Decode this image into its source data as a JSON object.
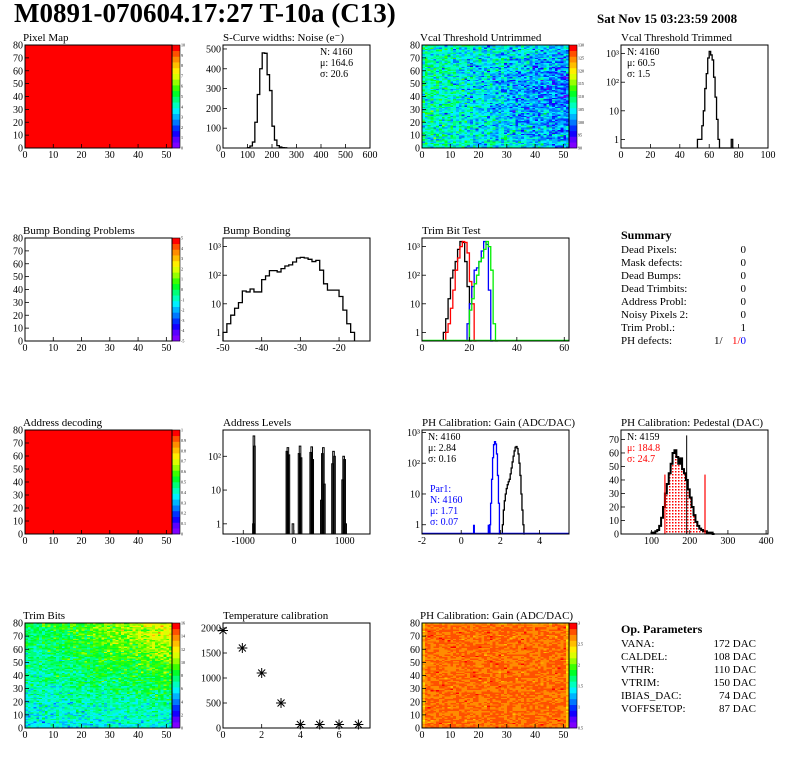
{
  "header": {
    "title": "M0891-070604.17:27 T-10a (C13)",
    "date": "Sat Nov 15 03:23:59 2008"
  },
  "summary": {
    "title": "Summary",
    "rows": [
      {
        "label": "Dead Pixels:",
        "value": "0"
      },
      {
        "label": "Mask defects:",
        "value": "0"
      },
      {
        "label": "Dead Bumps:",
        "value": "0"
      },
      {
        "label": "Dead Trimbits:",
        "value": "0"
      },
      {
        "label": "Address Probl:",
        "value": "0"
      },
      {
        "label": "Noisy Pixels 2:",
        "value": "0"
      },
      {
        "label": "Trim Probl.:",
        "value": "1"
      }
    ],
    "ph_defects": {
      "label": "PH defects:",
      "v1": "1/",
      "v2": "1/",
      "v3": "0"
    }
  },
  "op_params": {
    "title": "Op. Parameters",
    "rows": [
      {
        "label": "VANA:",
        "value": "172 DAC"
      },
      {
        "label": "CALDEL:",
        "value": "108 DAC"
      },
      {
        "label": "VTHR:",
        "value": "110 DAC"
      },
      {
        "label": "VTRIM:",
        "value": "150 DAC"
      },
      {
        "label": "IBIAS_DAC:",
        "value": "74 DAC"
      },
      {
        "label": "VOFFSETOP:",
        "value": "87 DAC"
      }
    ]
  },
  "colors": {
    "red": "#ff0000",
    "blue": "#0000ff",
    "green": "#00ee00",
    "black": "#000000"
  },
  "chart_data": [
    {
      "id": "pixel-map",
      "type": "heatmap",
      "title": "Pixel Map",
      "xlim": [
        0,
        52
      ],
      "ylim": [
        0,
        80
      ],
      "zlim": [
        0,
        10
      ],
      "z_value": 10,
      "z_ticks": [
        "0",
        "1",
        "2",
        "3",
        "4",
        "5",
        "6",
        "7",
        "8",
        "9",
        "10"
      ],
      "xticks": [
        0,
        10,
        20,
        30,
        40,
        50
      ],
      "yticks": [
        0,
        10,
        20,
        30,
        40,
        50,
        60,
        70,
        80
      ]
    },
    {
      "id": "s-curve-widths",
      "type": "bar",
      "title": "S-Curve widths: Noise (e⁻)",
      "xlim": [
        0,
        600
      ],
      "ylim": [
        0,
        520
      ],
      "xticks": [
        0,
        100,
        200,
        300,
        400,
        500,
        600
      ],
      "yticks": [
        0,
        100,
        200,
        300,
        400,
        500
      ],
      "series": [
        {
          "color": "#000000",
          "x0": 100,
          "bin": 10,
          "values": [
            2,
            10,
            30,
            130,
            270,
            400,
            480,
            478,
            370,
            290,
            110,
            40,
            12,
            5,
            2,
            1
          ]
        }
      ],
      "stats": [
        {
          "text": "N: 4160",
          "color": "#000000"
        },
        {
          "text": "μ: 164.6",
          "color": "#000000"
        },
        {
          "text": "σ: 20.6",
          "color": "#000000"
        }
      ],
      "stats_pos": "top-right"
    },
    {
      "id": "vcal-untrimmed",
      "type": "heatmap",
      "title": "Vcal Threshold Untrimmed",
      "xlim": [
        0,
        52
      ],
      "ylim": [
        0,
        80
      ],
      "zlim": [
        90,
        132
      ],
      "z_left": 108,
      "z_right": 101,
      "z_spread": 5,
      "z_ticks": [
        "90",
        "95",
        "100",
        "105",
        "110",
        "115",
        "120",
        "125",
        "130"
      ],
      "xticks": [
        0,
        10,
        20,
        30,
        40,
        50
      ],
      "yticks": [
        0,
        10,
        20,
        30,
        40,
        50,
        60,
        70,
        80
      ]
    },
    {
      "id": "vcal-trimmed",
      "type": "bar",
      "title": "Vcal Threshold Trimmed",
      "xlim": [
        0,
        100
      ],
      "ylim": [
        0.5,
        2000
      ],
      "ylog": true,
      "xticks": [
        0,
        20,
        40,
        60,
        80,
        100
      ],
      "yticks": [
        1,
        10,
        100,
        1000
      ],
      "series": [
        {
          "color": "#000000",
          "x0": 52,
          "bin": 1,
          "values": [
            1,
            1,
            1,
            3,
            10,
            60,
            200,
            700,
            1200,
            900,
            600,
            150,
            30,
            5,
            1,
            0.4,
            0.4,
            0.4,
            0.4,
            0.4,
            0.4,
            0.4,
            0.4,
            1,
            0.4
          ]
        }
      ],
      "stats": [
        {
          "text": "N: 4160",
          "color": "#000000"
        },
        {
          "text": "μ: 60.5",
          "color": "#000000"
        },
        {
          "text": "σ:  1.5",
          "color": "#000000"
        }
      ],
      "stats_pos": "top-left"
    },
    {
      "id": "bump-bonding-problems",
      "type": "heatmap",
      "title": "Bump Bonding Problems",
      "xlim": [
        0,
        52
      ],
      "ylim": [
        0,
        80
      ],
      "zlim": [
        -5,
        5
      ],
      "z_value": null,
      "z_ticks": [
        "-5",
        "-4",
        "-3",
        "-2",
        "-1",
        "0",
        "1",
        "2",
        "3",
        "4",
        "5"
      ],
      "xticks": [
        0,
        10,
        20,
        30,
        40,
        50
      ],
      "yticks": [
        0,
        10,
        20,
        30,
        40,
        50,
        60,
        70,
        80
      ]
    },
    {
      "id": "bump-bonding",
      "type": "bar",
      "title": "Bump Bonding",
      "xlim": [
        -50,
        -12
      ],
      "ylim": [
        0.5,
        2000
      ],
      "ylog": true,
      "xticks": [
        -50,
        -40,
        -30,
        -20
      ],
      "yticks": [
        1,
        10,
        100,
        1000
      ],
      "series": [
        {
          "color": "#000000",
          "x0": -50,
          "bin": 1,
          "values": [
            1,
            2,
            4,
            7,
            11,
            28,
            26,
            33,
            26,
            26,
            70,
            95,
            145,
            145,
            130,
            170,
            210,
            230,
            290,
            400,
            420,
            400,
            360,
            300,
            330,
            150,
            50,
            30,
            30,
            30,
            18,
            6,
            2,
            1
          ]
        }
      ]
    },
    {
      "id": "trim-bit-test",
      "type": "bar",
      "title": "Trim Bit Test",
      "xlim": [
        0,
        62
      ],
      "ylim": [
        0.5,
        2000
      ],
      "ylog": true,
      "xticks": [
        0,
        20,
        40,
        60
      ],
      "yticks": [
        1,
        10,
        100,
        1000
      ],
      "series": [
        {
          "color": "#000000",
          "x0": 9,
          "bin": 1,
          "values": [
            1,
            3,
            15,
            80,
            150,
            300,
            800,
            1500,
            1400,
            300,
            40,
            0.4
          ]
        },
        {
          "color": "#ff0000",
          "x0": 10,
          "bin": 1,
          "values": [
            1,
            2,
            7,
            30,
            150,
            400,
            1000,
            1500,
            1400,
            600,
            60,
            10,
            0.4
          ]
        },
        {
          "color": "#0000ff",
          "x0": 19,
          "bin": 1,
          "values": [
            2,
            10,
            40,
            150,
            180,
            300,
            700,
            1500,
            1200,
            30,
            0.4
          ]
        },
        {
          "color": "#00ee00",
          "x0": 20,
          "bin": 1,
          "values": [
            6,
            15,
            50,
            100,
            300,
            400,
            800,
            1500,
            1000,
            150,
            2,
            0.4
          ]
        }
      ]
    },
    {
      "id": "summary",
      "type": "table",
      "title": "Summary"
    },
    {
      "id": "address-decoding",
      "type": "heatmap",
      "title": "Address decoding",
      "xlim": [
        0,
        52
      ],
      "ylim": [
        0,
        80
      ],
      "zlim": [
        0,
        1
      ],
      "z_value": 1,
      "z_ticks": [
        "0",
        "0.1",
        "0.2",
        "0.3",
        "0.4",
        "0.5",
        "0.6",
        "0.7",
        "0.8",
        "0.9",
        "1"
      ],
      "xticks": [
        0,
        10,
        20,
        30,
        40,
        50
      ],
      "yticks": [
        0,
        10,
        20,
        30,
        40,
        50,
        60,
        70,
        80
      ]
    },
    {
      "id": "address-levels",
      "type": "bar",
      "title": "Address Levels",
      "xlim": [
        -1400,
        1500
      ],
      "ylim": [
        0.5,
        600
      ],
      "ylog": true,
      "xticks": [
        -1000,
        0,
        1000
      ],
      "yticks": [
        1,
        10,
        100
      ],
      "spikes": [
        [
          -800,
          1
        ],
        [
          -790,
          400
        ],
        [
          -780,
          200
        ],
        [
          -140,
          140
        ],
        [
          -120,
          180
        ],
        [
          -100,
          110
        ],
        [
          -20,
          1
        ],
        [
          100,
          120
        ],
        [
          120,
          200
        ],
        [
          140,
          90
        ],
        [
          330,
          130
        ],
        [
          350,
          190
        ],
        [
          370,
          80
        ],
        [
          540,
          5
        ],
        [
          560,
          120
        ],
        [
          580,
          180
        ],
        [
          600,
          15
        ],
        [
          760,
          60
        ],
        [
          780,
          140
        ],
        [
          800,
          100
        ],
        [
          960,
          20
        ],
        [
          980,
          100
        ],
        [
          1000,
          80
        ],
        [
          1020,
          1
        ]
      ]
    },
    {
      "id": "ph-calibration-gain-hist",
      "type": "bar",
      "title": "PH Calibration: Gain (ADC/DAC)",
      "xlim": [
        -2,
        5.5
      ],
      "ylim": [
        0.5,
        1200
      ],
      "ylog": true,
      "xticks": [
        -2,
        0,
        2,
        4
      ],
      "yticks": [
        1,
        10,
        100,
        1000
      ],
      "series": [
        {
          "color": "#000000",
          "x0": 2.1,
          "bin": 0.05,
          "values": [
            1,
            3,
            6,
            10,
            15,
            20,
            25,
            30,
            45,
            70,
            110,
            170,
            250,
            330,
            350,
            300,
            200,
            100,
            40,
            10,
            3,
            1,
            0.4
          ]
        },
        {
          "color": "#0000ff",
          "x0": 1.45,
          "bin": 0.05,
          "values": [
            1,
            5,
            30,
            150,
            400,
            500,
            420,
            200,
            40,
            5,
            0.4
          ]
        }
      ],
      "blue_spikes": [
        0.6,
        1.35,
        1.4
      ],
      "stats": [
        {
          "text": "N: 4160",
          "color": "#000000"
        },
        {
          "text": "μ: 2.84",
          "color": "#000000"
        },
        {
          "text": "σ: 0.16",
          "color": "#000000"
        }
      ],
      "stats2": [
        {
          "text": "Par1:",
          "color": "#0000ff"
        },
        {
          "text": "N: 4160",
          "color": "#0000ff"
        },
        {
          "text": "μ: 1.71",
          "color": "#0000ff"
        },
        {
          "text": "σ: 0.07",
          "color": "#0000ff"
        }
      ]
    },
    {
      "id": "ph-calibration-pedestal",
      "type": "bar",
      "title": "PH Calibration: Pedestal (DAC)",
      "xlim": [
        20,
        405
      ],
      "ylim": [
        0,
        77
      ],
      "xticks": [
        100,
        200,
        300,
        400
      ],
      "yticks": [
        0,
        10,
        20,
        30,
        40,
        50,
        60,
        70
      ],
      "series": [
        {
          "color": "#000000",
          "x0": 100,
          "bin": 5,
          "values": [
            1,
            1,
            2,
            3,
            6,
            12,
            20,
            30,
            37,
            45,
            52,
            60,
            62,
            57,
            52,
            56,
            48,
            45,
            40,
            33,
            27,
            20,
            14,
            9,
            6,
            4,
            3,
            2,
            2,
            1,
            1,
            1,
            0
          ]
        }
      ],
      "fill_range": [
        135,
        240
      ],
      "cut_lines": [
        135,
        240
      ],
      "peak_spike": [
        192,
        73
      ],
      "stats": [
        {
          "text": "N: 4159",
          "color": "#000000"
        },
        {
          "text": "μ: 184.8",
          "color": "#ff0000"
        },
        {
          "text": "σ: 24.7",
          "color": "#ff0000"
        }
      ]
    },
    {
      "id": "trim-bits",
      "type": "heatmap",
      "title": "Trim Bits",
      "xlim": [
        0,
        52
      ],
      "ylim": [
        0,
        80
      ],
      "zlim": [
        0,
        16
      ],
      "z_low": 6,
      "z_high": 11,
      "z_spread": 1.3,
      "z_ticks": [
        "0",
        "2",
        "4",
        "6",
        "8",
        "10",
        "12",
        "14",
        "16"
      ],
      "xticks": [
        0,
        10,
        20,
        30,
        40,
        50
      ],
      "yticks": [
        0,
        10,
        20,
        30,
        40,
        50,
        60,
        70,
        80
      ]
    },
    {
      "id": "temperature-calibration",
      "type": "scatter",
      "title": "Temperature calibration",
      "xlim": [
        0,
        7.6
      ],
      "ylim": [
        0,
        2100
      ],
      "xticks": [
        0,
        2,
        4,
        6
      ],
      "yticks": [
        0,
        500,
        1000,
        1500,
        2000
      ],
      "x": [
        0,
        1,
        2,
        3,
        4,
        5,
        6,
        7
      ],
      "y": [
        1950,
        1600,
        1100,
        500,
        70,
        70,
        70,
        70
      ]
    },
    {
      "id": "ph-calibration-gain-map",
      "type": "heatmap",
      "title": "PH Calibration: Gain (ADC/DAC)",
      "xlim": [
        0,
        52
      ],
      "ylim": [
        0,
        80
      ],
      "zlim": [
        0,
        3.2
      ],
      "z_mean": 2.85,
      "z_spread": 0.12,
      "z_ticks": [
        "0.5",
        "1",
        "1.5",
        "2",
        "2.5",
        "3"
      ],
      "xticks": [
        0,
        10,
        20,
        30,
        40,
        50
      ],
      "yticks": [
        0,
        10,
        20,
        30,
        40,
        50,
        60,
        70,
        80
      ]
    },
    {
      "id": "op-parameters",
      "type": "table",
      "title": "Op. Parameters"
    }
  ]
}
